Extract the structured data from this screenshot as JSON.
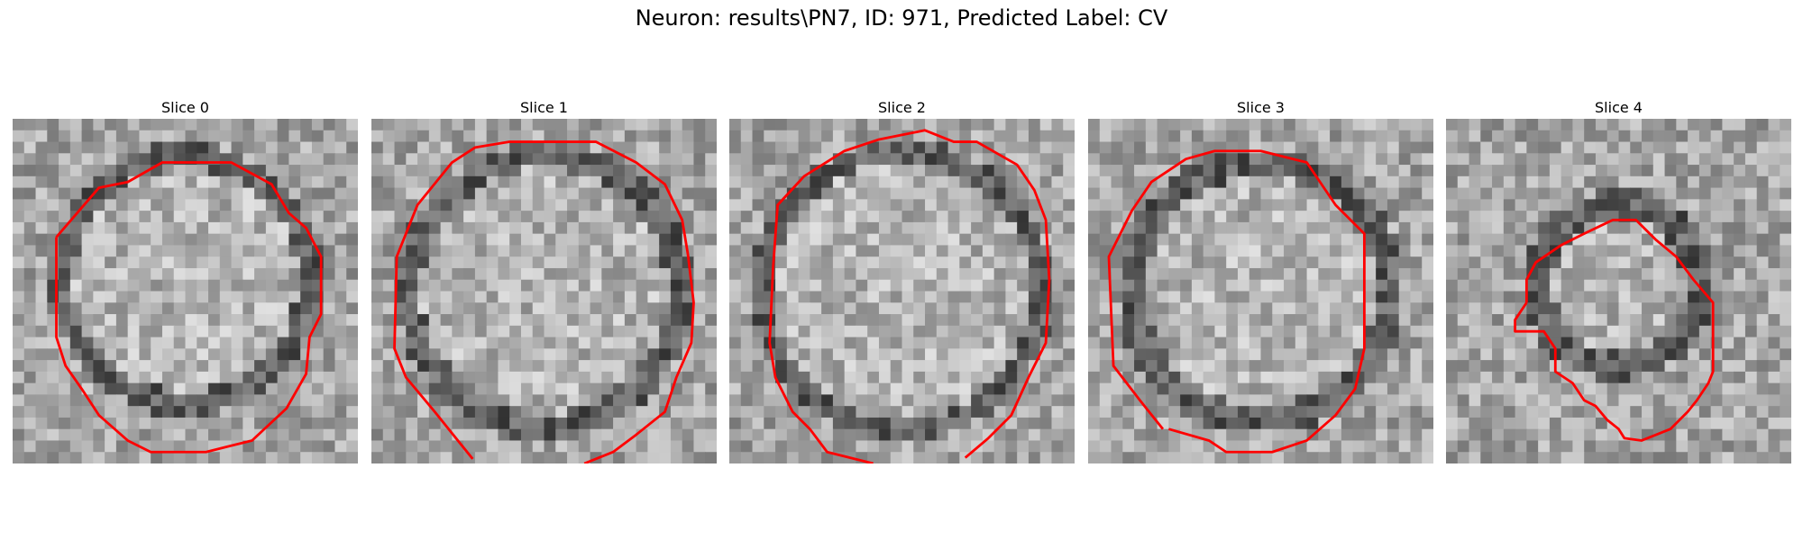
{
  "figure": {
    "title": "Neuron: results\\PN7, ID: 971, Predicted Label: CV"
  },
  "panels": [
    {
      "title": "Slice 0"
    },
    {
      "title": "Slice 1"
    },
    {
      "title": "Slice 2"
    },
    {
      "title": "Slice 3"
    },
    {
      "title": "Slice 4"
    }
  ],
  "colors": {
    "contour": "#ff0000",
    "image_palette": "grayscale"
  }
}
